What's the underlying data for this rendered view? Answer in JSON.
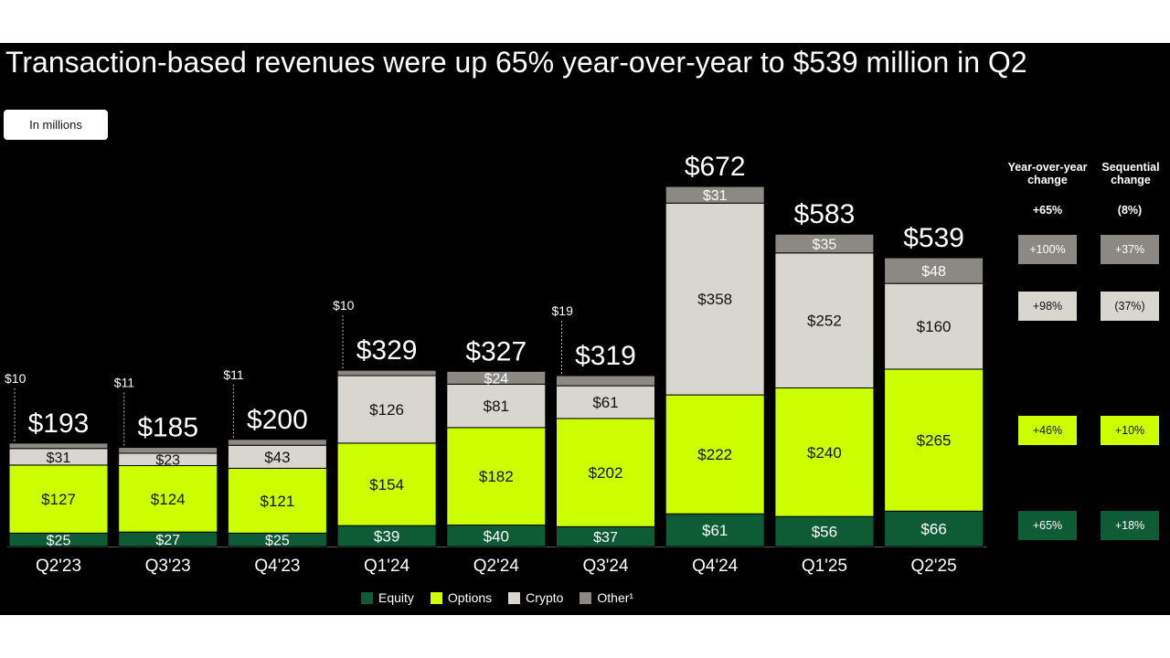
{
  "title": "Transaction-based revenues were up 65% year-over-year to $539 million in Q2",
  "units_badge": "In millions",
  "colors": {
    "Equity": "#0e5c35",
    "Options": "#ccff00",
    "Crypto": "#d9d6cf",
    "Other": "#8c8985",
    "background": "#000000"
  },
  "chart_data": {
    "type": "bar",
    "stacked": true,
    "title": "Transaction-based revenues were up 65% year-over-year to $539 million in Q2",
    "ylabel": "In millions",
    "categories": [
      "Q2'23",
      "Q3'23",
      "Q4'23",
      "Q1'24",
      "Q2'24",
      "Q3'24",
      "Q4'24",
      "Q1'25",
      "Q2'25"
    ],
    "series": [
      {
        "name": "Equity",
        "values": [
          25,
          27,
          25,
          39,
          40,
          37,
          61,
          56,
          66
        ],
        "labels": [
          "$25",
          "$27",
          "$25",
          "$39",
          "$40",
          "$37",
          "$61",
          "$56",
          "$66"
        ]
      },
      {
        "name": "Options",
        "values": [
          127,
          124,
          121,
          154,
          182,
          202,
          222,
          240,
          265
        ],
        "labels": [
          "$127",
          "$124",
          "$121",
          "$154",
          "$182",
          "$202",
          "$222",
          "$240",
          "$265"
        ]
      },
      {
        "name": "Crypto",
        "values": [
          31,
          23,
          43,
          126,
          81,
          61,
          358,
          252,
          160
        ],
        "labels": [
          "$31",
          "$23",
          "$43",
          "$126",
          "$81",
          "$61",
          "$358",
          "$252",
          "$160"
        ]
      },
      {
        "name": "Other",
        "values": [
          10,
          11,
          11,
          10,
          24,
          19,
          31,
          35,
          48
        ],
        "labels": [
          "$10",
          "$11",
          "$11",
          "$10",
          "$24",
          "$19",
          "$31",
          "$35",
          "$48"
        ]
      }
    ],
    "totals": [
      193,
      185,
      200,
      329,
      327,
      319,
      672,
      583,
      539
    ],
    "total_labels": [
      "$193",
      "$185",
      "$200",
      "$329",
      "$327",
      "$319",
      "$672",
      "$583",
      "$539"
    ],
    "ylim": [
      0,
      700
    ],
    "legend": [
      "Equity",
      "Options",
      "Crypto",
      "Other¹"
    ],
    "legend_position": "bottom-center"
  },
  "change_table": {
    "yoy_header": "Year-over-year change",
    "seq_header": "Sequential change",
    "yoy_total": "+65%",
    "seq_total": "(8%)",
    "rows": [
      {
        "segment": "Other",
        "yoy": "+100%",
        "seq": "+37%"
      },
      {
        "segment": "Crypto",
        "yoy": "+98%",
        "seq": "(37%)"
      },
      {
        "segment": "Options",
        "yoy": "+46%",
        "seq": "+10%"
      },
      {
        "segment": "Equity",
        "yoy": "+65%",
        "seq": "+18%"
      }
    ]
  }
}
